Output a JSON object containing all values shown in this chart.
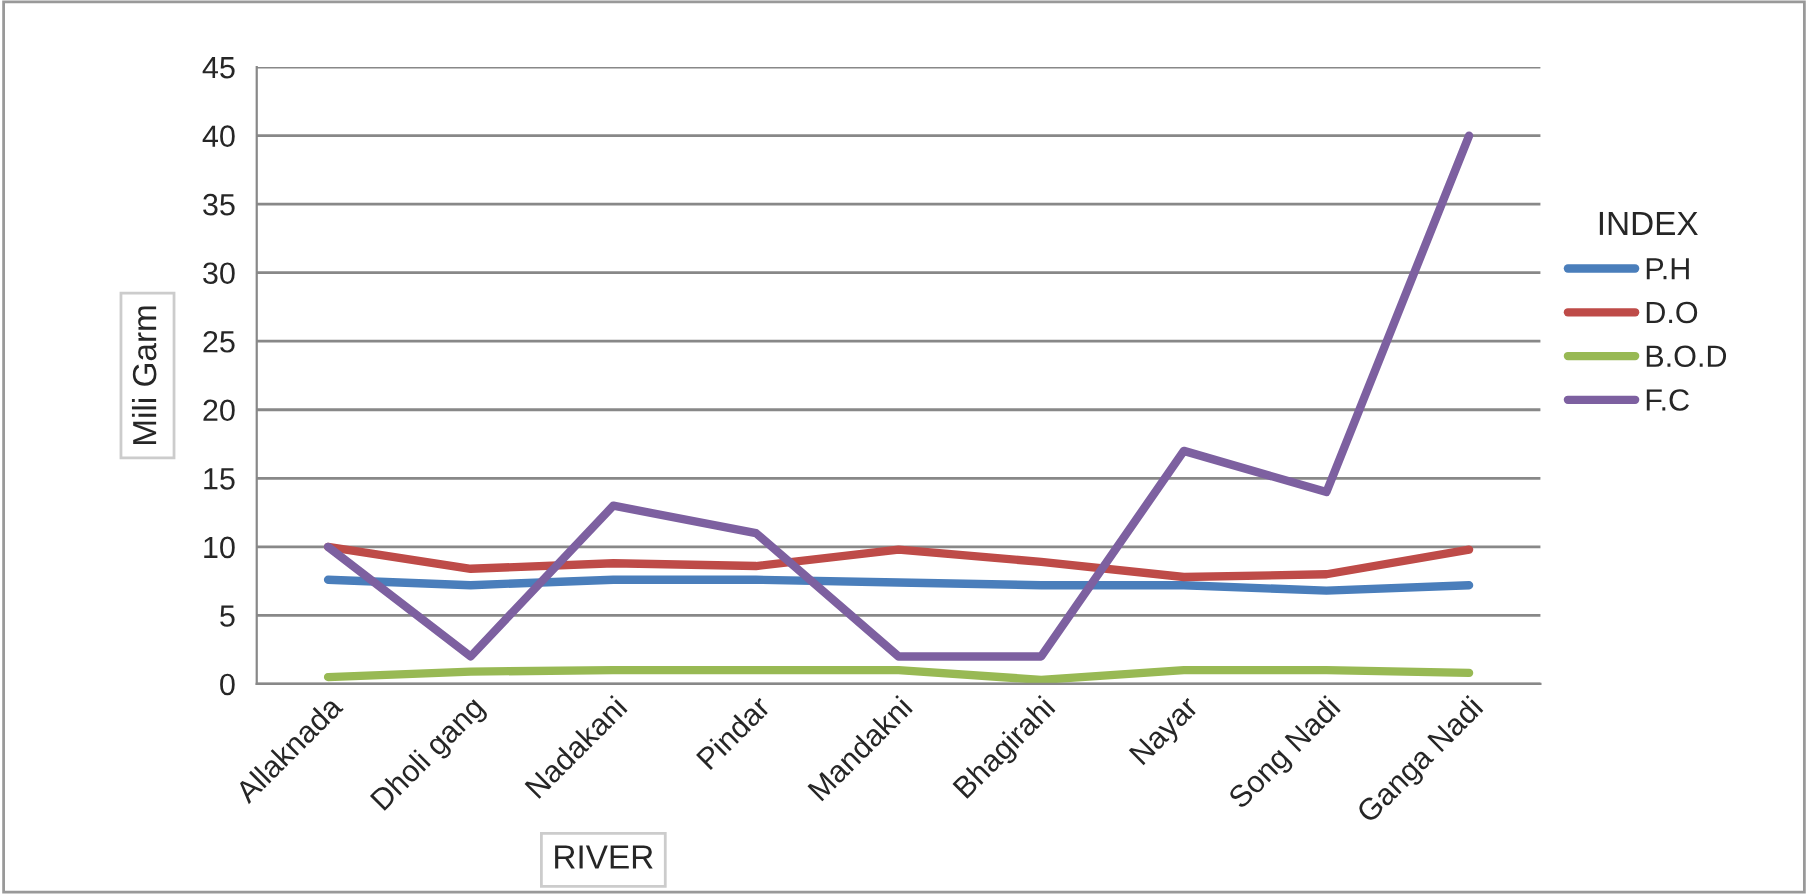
{
  "chart_data": {
    "type": "line",
    "xlabel": "RIVER",
    "ylabel": "Mili Garm",
    "legend_title": "INDEX",
    "categories": [
      "Allaknada",
      "Dholi gang",
      "Nadakani",
      "Pindar",
      "Mandakni",
      "Bhagirahi",
      "Nayar",
      "Song Nadi",
      "Ganga Nadi"
    ],
    "series": [
      {
        "name": "P.H",
        "color": "#4a7ebb",
        "values": [
          7.6,
          7.2,
          7.6,
          7.6,
          7.4,
          7.2,
          7.2,
          6.8,
          7.2
        ]
      },
      {
        "name": "D.O",
        "color": "#be4b48",
        "values": [
          10,
          8.4,
          8.8,
          8.6,
          9.8,
          8.9,
          7.8,
          8.0,
          9.8
        ]
      },
      {
        "name": "B.O.D",
        "color": "#98b954",
        "values": [
          0.5,
          0.9,
          1,
          1,
          1,
          0.3,
          1,
          1,
          0.8
        ]
      },
      {
        "name": "F.C",
        "color": "#7d60a0",
        "values": [
          10,
          2,
          13,
          11,
          2,
          2,
          17,
          14,
          40
        ]
      }
    ],
    "ylim": [
      0,
      45
    ],
    "yticks": [
      0,
      5,
      10,
      15,
      20,
      25,
      30,
      35,
      40,
      45
    ],
    "grid": "y",
    "legend": "right",
    "marker": "none",
    "line_style": "solid"
  }
}
